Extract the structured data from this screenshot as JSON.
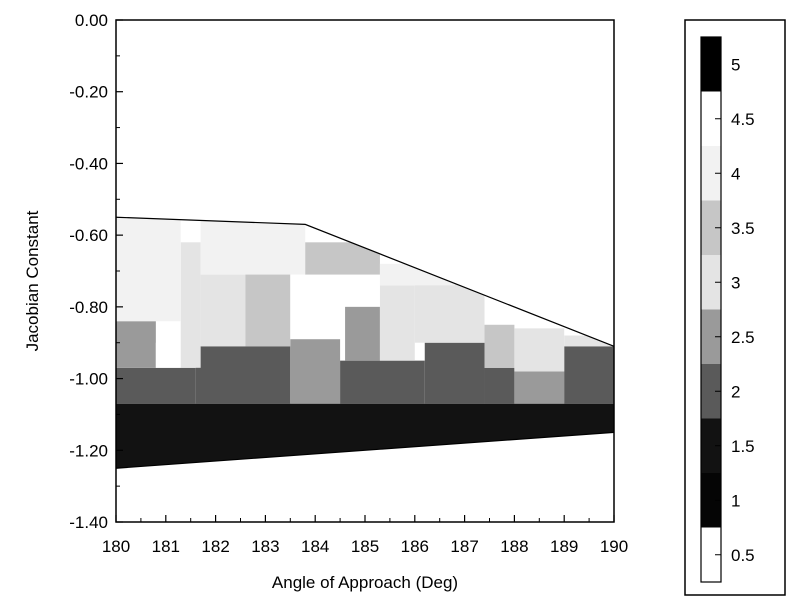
{
  "chart_data": {
    "type": "heatmap",
    "title": "",
    "xlabel": "Angle of Approach (Deg)",
    "ylabel": "Jacobian Constant",
    "xlim": [
      180,
      190
    ],
    "ylim": [
      -1.4,
      0.0
    ],
    "x_ticks": [
      "180",
      "181",
      "182",
      "183",
      "184",
      "185",
      "186",
      "187",
      "188",
      "189",
      "190"
    ],
    "y_ticks": [
      "0.00",
      "-0.20",
      "-0.40",
      "-0.60",
      "-0.80",
      "-1.00",
      "-1.20",
      "-1.40"
    ],
    "grid": false,
    "colorbar": {
      "placement": "right",
      "range": [
        0.5,
        5
      ],
      "labels": [
        "5",
        "4.5",
        "4",
        "3.5",
        "3",
        "2.5",
        "2",
        "1.5",
        "1",
        "0.5"
      ],
      "levels": [
        {
          "value": 5,
          "color": "#000000"
        },
        {
          "value": 4.5,
          "color": "#ffffff"
        },
        {
          "value": 4,
          "color": "#f2f2f2"
        },
        {
          "value": 3.5,
          "color": "#c6c6c6"
        },
        {
          "value": 3,
          "color": "#e4e4e4"
        },
        {
          "value": 2.5,
          "color": "#9a9a9a"
        },
        {
          "value": 2,
          "color": "#5a5a5a"
        },
        {
          "value": 1.5,
          "color": "#121212"
        },
        {
          "value": 1,
          "color": "#050505"
        },
        {
          "value": 0.5,
          "color": "#ffffff"
        }
      ]
    },
    "domain_boundary": {
      "upper": [
        [
          180,
          -0.55
        ],
        [
          183.8,
          -0.57
        ],
        [
          190,
          -0.91
        ]
      ],
      "lower": [
        [
          180,
          -1.25
        ],
        [
          190,
          -1.15
        ]
      ]
    },
    "regions": [
      {
        "x": [
          180.0,
          190.0
        ],
        "y": [
          -1.25,
          -1.07
        ],
        "value": 1.5
      },
      {
        "x": [
          180.0,
          181.6
        ],
        "y": [
          -1.07,
          -0.97
        ],
        "value": 2
      },
      {
        "x": [
          181.6,
          183.5
        ],
        "y": [
          -1.07,
          -0.91
        ],
        "value": 2
      },
      {
        "x": [
          183.5,
          184.5
        ],
        "y": [
          -1.07,
          -0.89
        ],
        "value": 2.5
      },
      {
        "x": [
          184.5,
          186.2
        ],
        "y": [
          -1.07,
          -0.95
        ],
        "value": 2
      },
      {
        "x": [
          186.2,
          187.4
        ],
        "y": [
          -1.07,
          -0.9
        ],
        "value": 2
      },
      {
        "x": [
          187.4,
          188.0
        ],
        "y": [
          -1.07,
          -0.97
        ],
        "value": 2
      },
      {
        "x": [
          188.0,
          189.0
        ],
        "y": [
          -1.07,
          -0.98
        ],
        "value": 2.5
      },
      {
        "x": [
          189.0,
          190.0
        ],
        "y": [
          -1.07,
          -0.91
        ],
        "value": 2
      },
      {
        "x": [
          180.0,
          180.8
        ],
        "y": [
          -0.97,
          -0.84
        ],
        "value": 2.5
      },
      {
        "x": [
          180.8,
          181.3
        ],
        "y": [
          -0.97,
          -0.9
        ],
        "value": 4.5
      },
      {
        "x": [
          181.3,
          181.7
        ],
        "y": [
          -0.97,
          -0.62
        ],
        "value": 3
      },
      {
        "x": [
          181.7,
          182.6
        ],
        "y": [
          -0.91,
          -0.71
        ],
        "value": 3
      },
      {
        "x": [
          182.6,
          183.5
        ],
        "y": [
          -0.91,
          -0.65
        ],
        "value": 3.5
      },
      {
        "x": [
          183.5,
          184.6
        ],
        "y": [
          -0.89,
          -0.71
        ],
        "value": 4.5
      },
      {
        "x": [
          184.6,
          185.3
        ],
        "y": [
          -0.95,
          -0.8
        ],
        "value": 2.5
      },
      {
        "x": [
          185.3,
          186.0
        ],
        "y": [
          -0.95,
          -0.74
        ],
        "value": 3
      },
      {
        "x": [
          186.0,
          187.4
        ],
        "y": [
          -0.9,
          -0.72
        ],
        "value": 3
      },
      {
        "x": [
          187.4,
          188.0
        ],
        "y": [
          -0.97,
          -0.85
        ],
        "value": 3.5
      },
      {
        "x": [
          188.0,
          189.0
        ],
        "y": [
          -0.98,
          -0.86
        ],
        "value": 3
      },
      {
        "x": [
          189.0,
          190.0
        ],
        "y": [
          -0.91,
          -0.88
        ],
        "value": 3
      },
      {
        "x": [
          180.0,
          181.3
        ],
        "y": [
          -0.84,
          -0.55
        ],
        "value": 4
      },
      {
        "x": [
          181.7,
          183.8
        ],
        "y": [
          -0.71,
          -0.55
        ],
        "value": 4
      },
      {
        "x": [
          183.8,
          185.3
        ],
        "y": [
          -0.71,
          -0.62
        ],
        "value": 3.5
      },
      {
        "x": [
          185.3,
          186.8
        ],
        "y": [
          -0.74,
          -0.68
        ],
        "value": 4
      }
    ]
  }
}
